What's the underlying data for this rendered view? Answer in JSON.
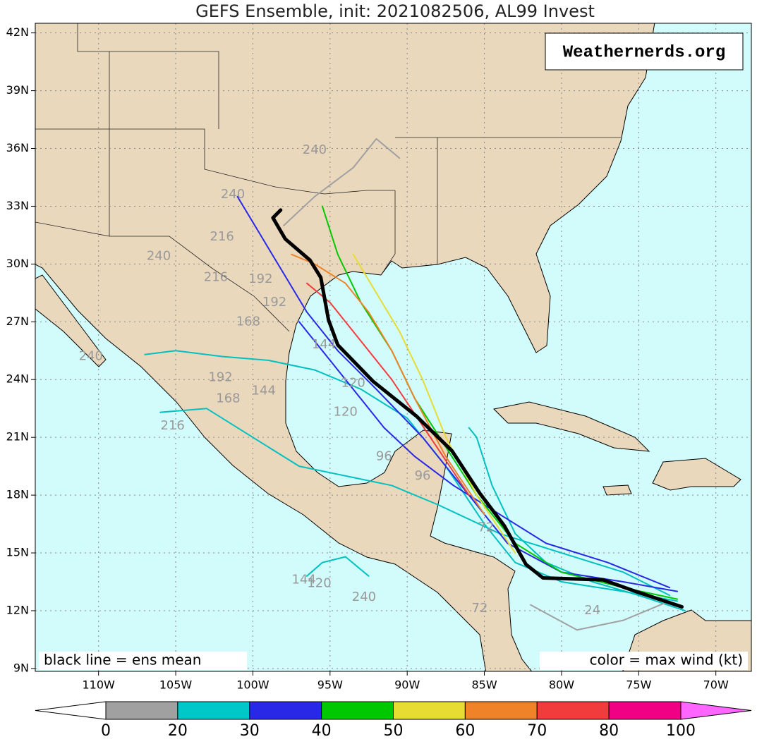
{
  "chart_data": {
    "type": "track-map",
    "title": "GEFS Ensemble, init: 2021082506, AL99 Invest",
    "watermark": "Weathernerds.org",
    "note_left": "black line = ens mean",
    "note_right": "color = max wind (kt)",
    "xlim": [
      -114.1,
      -67.7
    ],
    "ylim": [
      8.85,
      42.5
    ],
    "grid": true,
    "xticks": [
      {
        "value": -110,
        "label": "110W"
      },
      {
        "value": -105,
        "label": "105W"
      },
      {
        "value": -100,
        "label": "100W"
      },
      {
        "value": -95,
        "label": "95W"
      },
      {
        "value": -90,
        "label": "90W"
      },
      {
        "value": -85,
        "label": "85W"
      },
      {
        "value": -80,
        "label": "80W"
      },
      {
        "value": -75,
        "label": "75W"
      },
      {
        "value": -70,
        "label": "70W"
      }
    ],
    "yticks": [
      {
        "value": 9,
        "label": "9N"
      },
      {
        "value": 12,
        "label": "12N"
      },
      {
        "value": 15,
        "label": "15N"
      },
      {
        "value": 18,
        "label": "18N"
      },
      {
        "value": 21,
        "label": "21N"
      },
      {
        "value": 24,
        "label": "24N"
      },
      {
        "value": 27,
        "label": "27N"
      },
      {
        "value": 30,
        "label": "30N"
      },
      {
        "value": 33,
        "label": "33N"
      },
      {
        "value": 36,
        "label": "36N"
      },
      {
        "value": 39,
        "label": "39N"
      },
      {
        "value": 42,
        "label": "42N"
      }
    ],
    "colorbar": {
      "bounds": [
        0,
        20,
        30,
        40,
        50,
        60,
        70,
        80,
        100
      ],
      "colors": [
        "#a0a0a0",
        "#00c8c8",
        "#2828e6",
        "#00c800",
        "#e6dc32",
        "#f08228",
        "#f03c3c",
        "#f00082"
      ],
      "under_color": "#ffffff",
      "over_color": "#ff66ff"
    },
    "series": [
      {
        "color": "#00c0c0",
        "x": [
          -72.5,
          -76,
          -80,
          -83,
          -85,
          -87.5,
          -90,
          -93,
          -96,
          -99,
          -102,
          -105,
          -107
        ],
        "values": [
          12.5,
          13,
          13.5,
          14.5,
          16.5,
          19.5,
          22,
          23.5,
          24.5,
          25,
          25.2,
          25.5,
          25.3
        ]
      },
      {
        "color": "#00c0c0",
        "x": [
          -72,
          -75,
          -78,
          -81,
          -83,
          -84.5,
          -85.5,
          -86
        ],
        "values": [
          12,
          12.8,
          13.5,
          14.5,
          16,
          18.5,
          21,
          21.5
        ]
      },
      {
        "color": "#00c0c0",
        "x": [
          -73,
          -76,
          -80,
          -84,
          -88,
          -91,
          -94,
          -97,
          -100,
          -103,
          -106
        ],
        "values": [
          12.8,
          14,
          15,
          16,
          17.5,
          18.5,
          19,
          19.5,
          21,
          22.5,
          22.3
        ]
      },
      {
        "color": "#2828e6",
        "x": [
          -72.5,
          -76,
          -80,
          -83.5,
          -86,
          -89,
          -92,
          -94.5,
          -96.5,
          -98,
          -99.5,
          -101
        ],
        "values": [
          13,
          13.5,
          14,
          15.5,
          18,
          21,
          23.5,
          25.5,
          27.5,
          29.5,
          31.5,
          33.5
        ]
      },
      {
        "color": "#2828e6",
        "x": [
          -73,
          -77,
          -81,
          -84,
          -87,
          -89.5,
          -91.5,
          -93,
          -95,
          -97
        ],
        "values": [
          13.2,
          14.5,
          15.5,
          17,
          18.5,
          20,
          21.5,
          23,
          25,
          27
        ]
      },
      {
        "color": "#00c800",
        "x": [
          -72.5,
          -76,
          -80,
          -83,
          -85.5,
          -87.5,
          -89.5,
          -91,
          -93,
          -94.5,
          -95.5
        ],
        "values": [
          12.6,
          13.2,
          14,
          15.5,
          18,
          20.5,
          23,
          25.5,
          28,
          30.5,
          33
        ]
      },
      {
        "color": "#e6dc32",
        "x": [
          -83,
          -85.5,
          -87.5,
          -89,
          -90.5,
          -92,
          -93.5
        ],
        "values": [
          15,
          18,
          21,
          24,
          26.5,
          28.5,
          30.5
        ]
      },
      {
        "color": "#f08228",
        "x": [
          -85,
          -87.5,
          -89.5,
          -91,
          -92.5,
          -94,
          -96,
          -97.5
        ],
        "values": [
          17,
          20,
          23,
          25.5,
          27.5,
          29,
          30,
          30.5
        ]
      },
      {
        "color": "#f03c3c",
        "x": [
          -86,
          -88.5,
          -91,
          -93,
          -95,
          -96.5
        ],
        "values": [
          18,
          21,
          24,
          26,
          28,
          29
        ]
      },
      {
        "color": "#a0a0a0",
        "x": [
          -98,
          -96,
          -93.5,
          -92,
          -90.5
        ],
        "values": [
          32,
          33.5,
          35,
          36.5,
          35.5
        ]
      },
      {
        "color": "#a0a0a0",
        "x": [
          -82,
          -79,
          -76,
          -73
        ],
        "values": [
          12.3,
          11,
          11.5,
          12.5
        ]
      },
      {
        "color": "#00c0c0",
        "x": [
          -92.5,
          -94,
          -95.5,
          -96.5
        ],
        "values": [
          13.8,
          14.8,
          14.5,
          13.8
        ]
      },
      {
        "color": "#000000",
        "width": 5,
        "x": [
          -72.2,
          -75.2,
          -77.3,
          -81.2,
          -82.3,
          -83.7,
          -85.3,
          -87.1,
          -89.4,
          -92.2,
          -94.5,
          -95.1,
          -95.6,
          -96.3,
          -97.9,
          -98.7,
          -98.2
        ],
        "values": [
          12.2,
          13.0,
          13.6,
          13.7,
          14.4,
          16.4,
          18.1,
          20.3,
          22.1,
          23.9,
          25.8,
          27.1,
          29.3,
          30.2,
          31.3,
          32.4,
          32.8
        ]
      }
    ],
    "hour_labels": [
      {
        "label": 240,
        "lon": -96.0,
        "lat": 35.9
      },
      {
        "label": 240,
        "lon": -101.3,
        "lat": 33.6
      },
      {
        "label": 216,
        "lon": -102.0,
        "lat": 31.4
      },
      {
        "label": 240,
        "lon": -106.1,
        "lat": 30.4
      },
      {
        "label": 216,
        "lon": -102.4,
        "lat": 29.3
      },
      {
        "label": 192,
        "lon": -99.5,
        "lat": 29.2
      },
      {
        "label": 192,
        "lon": -98.6,
        "lat": 28.0
      },
      {
        "label": 168,
        "lon": -100.3,
        "lat": 27.0
      },
      {
        "label": 240,
        "lon": -110.5,
        "lat": 25.2
      },
      {
        "label": 192,
        "lon": -102.1,
        "lat": 24.1
      },
      {
        "label": 168,
        "lon": -101.6,
        "lat": 23.0
      },
      {
        "label": 144,
        "lon": -99.3,
        "lat": 23.4
      },
      {
        "label": 216,
        "lon": -105.2,
        "lat": 21.6
      },
      {
        "label": 144,
        "lon": -95.4,
        "lat": 25.8
      },
      {
        "label": 120,
        "lon": -93.5,
        "lat": 23.8
      },
      {
        "label": 120,
        "lon": -94.0,
        "lat": 22.3
      },
      {
        "label": 96,
        "lon": -91.5,
        "lat": 20.0
      },
      {
        "label": 96,
        "lon": -89.0,
        "lat": 19.0
      },
      {
        "label": 144,
        "lon": -96.7,
        "lat": 13.6
      },
      {
        "label": 120,
        "lon": -95.7,
        "lat": 13.4
      },
      {
        "label": 240,
        "lon": -92.8,
        "lat": 12.7
      },
      {
        "label": 72,
        "lon": -85.3,
        "lat": 12.1
      },
      {
        "label": 72,
        "lon": -84.9,
        "lat": 16.3
      },
      {
        "label": 24,
        "lon": -78.0,
        "lat": 12.0
      }
    ]
  }
}
